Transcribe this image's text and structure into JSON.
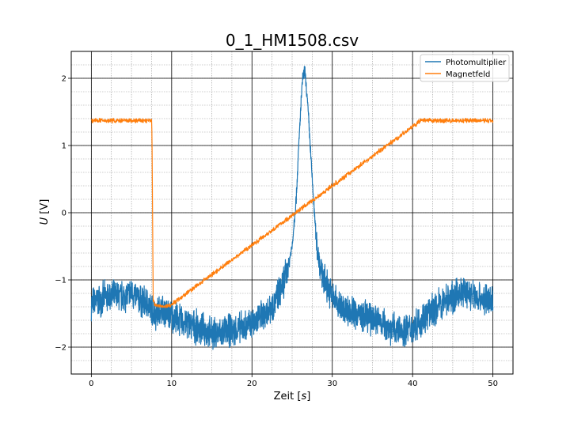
{
  "chart_data": {
    "type": "line",
    "title": "0_1_HM1508.csv",
    "xlabel": "Zeit [s]",
    "xlabel_text": "Zeit ",
    "xlabel_unit": "s",
    "ylabel": "U [V]",
    "ylabel_symbol": "U",
    "ylabel_unit": " [V]",
    "xlim": [
      -2.5,
      52.5
    ],
    "ylim": [
      -2.4,
      2.4
    ],
    "x_ticks": [
      0,
      10,
      20,
      30,
      40,
      50
    ],
    "x_tick_labels": [
      "0",
      "10",
      "20",
      "30",
      "40",
      "50"
    ],
    "y_ticks": [
      -2,
      -1,
      0,
      1,
      2
    ],
    "y_tick_labels": [
      "−2",
      "−1",
      "0",
      "1",
      "2"
    ],
    "grid": "major and minor",
    "legend_position": "top-right",
    "series": [
      {
        "name": "Photomultiplier",
        "color": "#1f77b4",
        "x": [
          0,
          2,
          4,
          5,
          6,
          7,
          7.5,
          8,
          8.5,
          9,
          10,
          11,
          12,
          13,
          14,
          15,
          16,
          17,
          18,
          19,
          20,
          21,
          22,
          23,
          23.5,
          24,
          24.5,
          25,
          25.5,
          26,
          26.3,
          26.6,
          27,
          27.5,
          28,
          28.5,
          29,
          30,
          31,
          32,
          34,
          36,
          37,
          38,
          39,
          40,
          41,
          42,
          43,
          44,
          45,
          46,
          47,
          48,
          49,
          50
        ],
        "y": [
          -1.35,
          -1.25,
          -1.25,
          -1.2,
          -1.3,
          -1.35,
          -1.45,
          -1.5,
          -1.45,
          -1.45,
          -1.55,
          -1.6,
          -1.65,
          -1.7,
          -1.75,
          -1.8,
          -1.8,
          -1.75,
          -1.75,
          -1.7,
          -1.65,
          -1.55,
          -1.45,
          -1.3,
          -1.15,
          -1.0,
          -0.8,
          -0.5,
          0.2,
          1.4,
          2.0,
          2.1,
          1.5,
          0.5,
          -0.4,
          -0.8,
          -1.0,
          -1.25,
          -1.4,
          -1.45,
          -1.55,
          -1.6,
          -1.7,
          -1.75,
          -1.75,
          -1.7,
          -1.6,
          -1.5,
          -1.4,
          -1.3,
          -1.25,
          -1.2,
          -1.2,
          -1.25,
          -1.3,
          -1.3
        ]
      },
      {
        "name": "Magnetfeld",
        "color": "#ff7f0e",
        "x": [
          0,
          7.5,
          7.55,
          7.7,
          8,
          9,
          9.8,
          41,
          50
        ],
        "y": [
          1.37,
          1.37,
          1.2,
          -1.3,
          -1.38,
          -1.4,
          -1.38,
          1.37,
          1.37
        ]
      }
    ]
  }
}
